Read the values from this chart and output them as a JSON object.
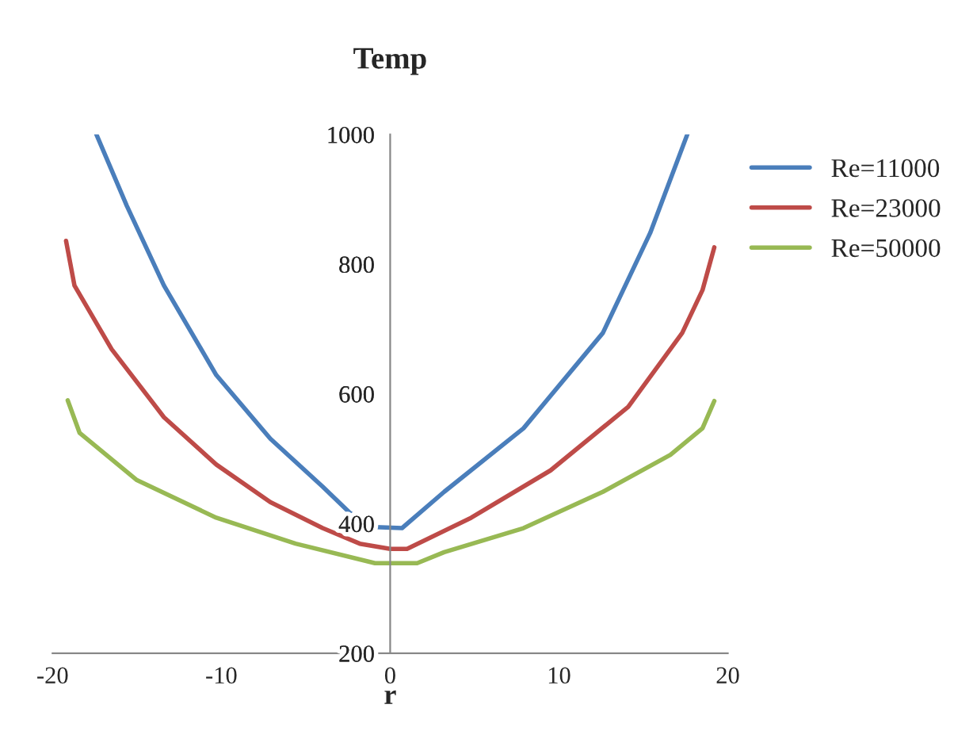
{
  "chart_data": {
    "type": "line",
    "title": "Temp",
    "xlabel": "r",
    "xlim": [
      -20,
      20
    ],
    "xticks": [
      -20,
      -10,
      0,
      10,
      20
    ],
    "ylim": [
      200,
      1000
    ],
    "yticks": [
      200,
      400,
      600,
      800,
      1000
    ],
    "grid": false,
    "legend": "right",
    "marker": "none",
    "line_style": "solid",
    "series": [
      {
        "name": "Re=11000",
        "color": "#4a7ebb",
        "x": [
          -17.4,
          -15.6,
          -13.4,
          -10.3,
          -7.1,
          -4.0,
          -2.4,
          -1.2,
          0.7,
          3.2,
          7.9,
          12.6,
          15.4,
          17.6
        ],
        "values": [
          1000,
          890,
          767,
          629,
          531,
          457,
          417,
          395,
          393,
          449,
          547,
          694,
          848,
          1000
        ]
      },
      {
        "name": "Re=23000",
        "color": "#be4b48",
        "x": [
          -19.2,
          -18.7,
          -16.5,
          -13.4,
          -10.3,
          -7.1,
          -4.0,
          -1.8,
          0.0,
          1.0,
          4.8,
          9.5,
          14.1,
          17.3,
          18.5,
          19.2
        ],
        "values": [
          836,
          767,
          669,
          564,
          491,
          433,
          393,
          369,
          361,
          361,
          409,
          482,
          580,
          694,
          760,
          826
        ]
      },
      {
        "name": "Re=50000",
        "color": "#98b954",
        "x": [
          -19.1,
          -18.4,
          -15.0,
          -10.3,
          -5.6,
          -0.9,
          1.6,
          3.2,
          7.9,
          12.6,
          16.6,
          18.5,
          19.2
        ],
        "values": [
          590,
          540,
          467,
          409,
          369,
          339,
          339,
          356,
          393,
          449,
          506,
          547,
          589
        ]
      }
    ]
  }
}
